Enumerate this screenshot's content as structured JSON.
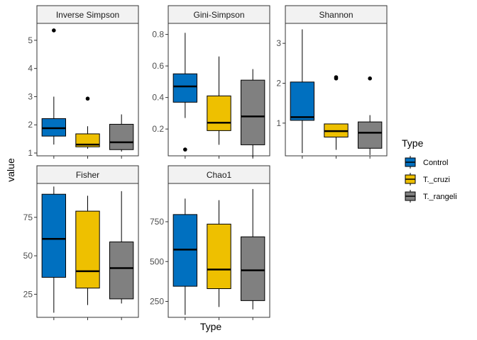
{
  "chart_data": {
    "type": "boxplot",
    "xlabel": "Type",
    "ylabel": "value",
    "legend": {
      "title": "Type",
      "position": "right",
      "entries": [
        "Control",
        "T._cruzi",
        "T._rangeli"
      ]
    },
    "colors": {
      "Control": "#0070C0",
      "T._cruzi": "#EEC000",
      "T._rangeli": "#808080",
      "strip_fill": "#F2F2F2",
      "panel_border": "#333333"
    },
    "facets": [
      {
        "name": "Inverse Simpson",
        "ylim": [
          0.9,
          5.6
        ],
        "yticks": [
          1,
          2,
          3,
          4,
          5
        ],
        "boxes": [
          {
            "group": "Control",
            "min": 1.3,
            "q1": 1.6,
            "median": 1.88,
            "q3": 2.22,
            "max": 3.0,
            "outliers": [
              5.35
            ]
          },
          {
            "group": "T._cruzi",
            "min": 1.15,
            "q1": 1.22,
            "median": 1.3,
            "q3": 1.68,
            "max": 1.95,
            "outliers": [
              2.93
            ]
          },
          {
            "group": "T._rangeli",
            "min": 1.05,
            "q1": 1.12,
            "median": 1.38,
            "q3": 2.02,
            "max": 2.37,
            "outliers": []
          }
        ]
      },
      {
        "name": "Gini-Simpson",
        "ylim": [
          0.03,
          0.87
        ],
        "yticks": [
          0.2,
          0.4,
          0.6,
          0.8
        ],
        "boxes": [
          {
            "group": "Control",
            "min": 0.27,
            "q1": 0.37,
            "median": 0.47,
            "q3": 0.55,
            "max": 0.81,
            "outliers": [
              0.07
            ]
          },
          {
            "group": "T._cruzi",
            "min": 0.1,
            "q1": 0.19,
            "median": 0.24,
            "q3": 0.41,
            "max": 0.66,
            "outliers": []
          },
          {
            "group": "T._rangeli",
            "min": 0.02,
            "q1": 0.1,
            "median": 0.28,
            "q3": 0.51,
            "max": 0.58,
            "outliers": []
          }
        ]
      },
      {
        "name": "Shannon",
        "ylim": [
          0.18,
          3.5
        ],
        "yticks": [
          1,
          2,
          3
        ],
        "boxes": [
          {
            "group": "Control",
            "min": 0.25,
            "q1": 1.07,
            "median": 1.15,
            "q3": 2.03,
            "max": 3.35,
            "outliers": []
          },
          {
            "group": "T._cruzi",
            "min": 0.33,
            "q1": 0.65,
            "median": 0.8,
            "q3": 0.98,
            "max": 0.98,
            "outliers": [
              2.12,
              2.15
            ]
          },
          {
            "group": "T._rangeli",
            "min": 0.2,
            "q1": 0.37,
            "median": 0.76,
            "q3": 1.03,
            "max": 1.2,
            "outliers": [
              2.12
            ]
          }
        ]
      },
      {
        "name": "Fisher",
        "ylim": [
          10,
          97
        ],
        "yticks": [
          25,
          50,
          75
        ],
        "boxes": [
          {
            "group": "Control",
            "min": 13,
            "q1": 36,
            "median": 61,
            "q3": 90,
            "max": 95,
            "outliers": []
          },
          {
            "group": "T._cruzi",
            "min": 18,
            "q1": 29,
            "median": 40,
            "q3": 79,
            "max": 89,
            "outliers": []
          },
          {
            "group": "T._rangeli",
            "min": 19,
            "q1": 22,
            "median": 42,
            "q3": 59,
            "max": 92,
            "outliers": []
          }
        ]
      },
      {
        "name": "Chao1",
        "ylim": [
          150,
          990
        ],
        "yticks": [
          250,
          500,
          750
        ],
        "boxes": [
          {
            "group": "Control",
            "min": 165,
            "q1": 345,
            "median": 575,
            "q3": 795,
            "max": 895,
            "outliers": []
          },
          {
            "group": "T._cruzi",
            "min": 215,
            "q1": 330,
            "median": 450,
            "q3": 735,
            "max": 885,
            "outliers": []
          },
          {
            "group": "T._rangeli",
            "min": 200,
            "q1": 255,
            "median": 445,
            "q3": 655,
            "max": 955,
            "outliers": []
          }
        ]
      }
    ]
  }
}
